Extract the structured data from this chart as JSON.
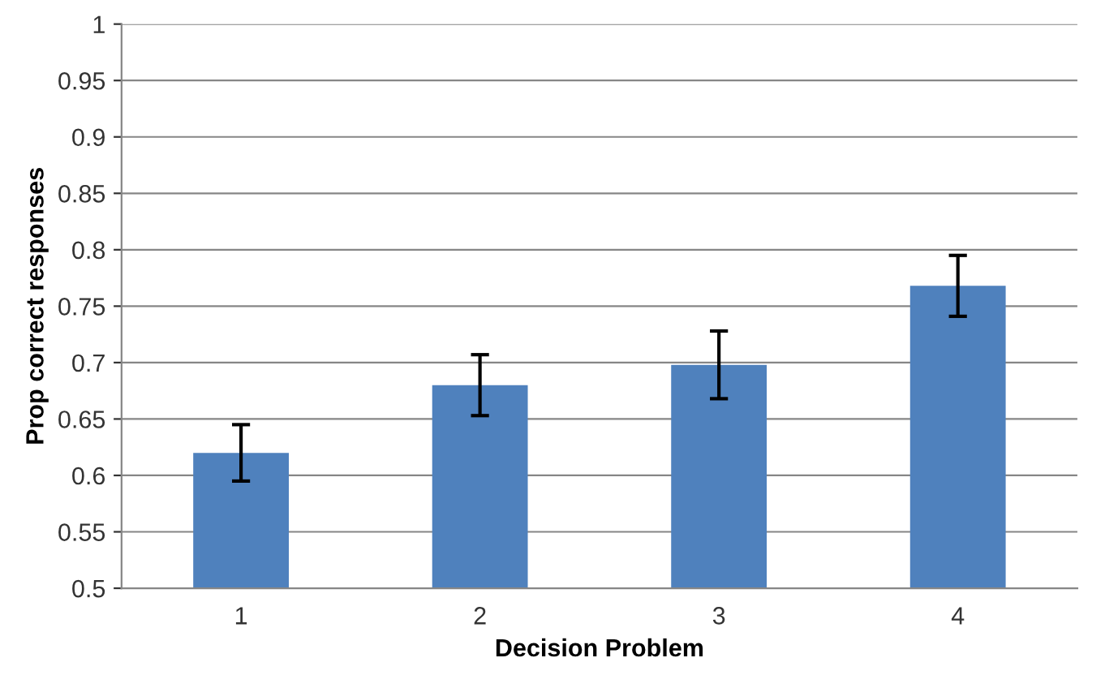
{
  "chart_data": {
    "type": "bar",
    "xlabel": "Decision Problem",
    "ylabel": "Prop correct responses",
    "categories": [
      "1",
      "2",
      "3",
      "4"
    ],
    "values": [
      0.62,
      0.68,
      0.698,
      0.768
    ],
    "errors": [
      0.025,
      0.027,
      0.03,
      0.027
    ],
    "color": "#4f81bd",
    "ylim": [
      0.5,
      1
    ],
    "yticks": [
      0.5,
      0.55,
      0.6,
      0.65,
      0.7,
      0.75,
      0.8,
      0.85,
      0.9,
      0.95,
      1
    ],
    "grid": "y"
  }
}
